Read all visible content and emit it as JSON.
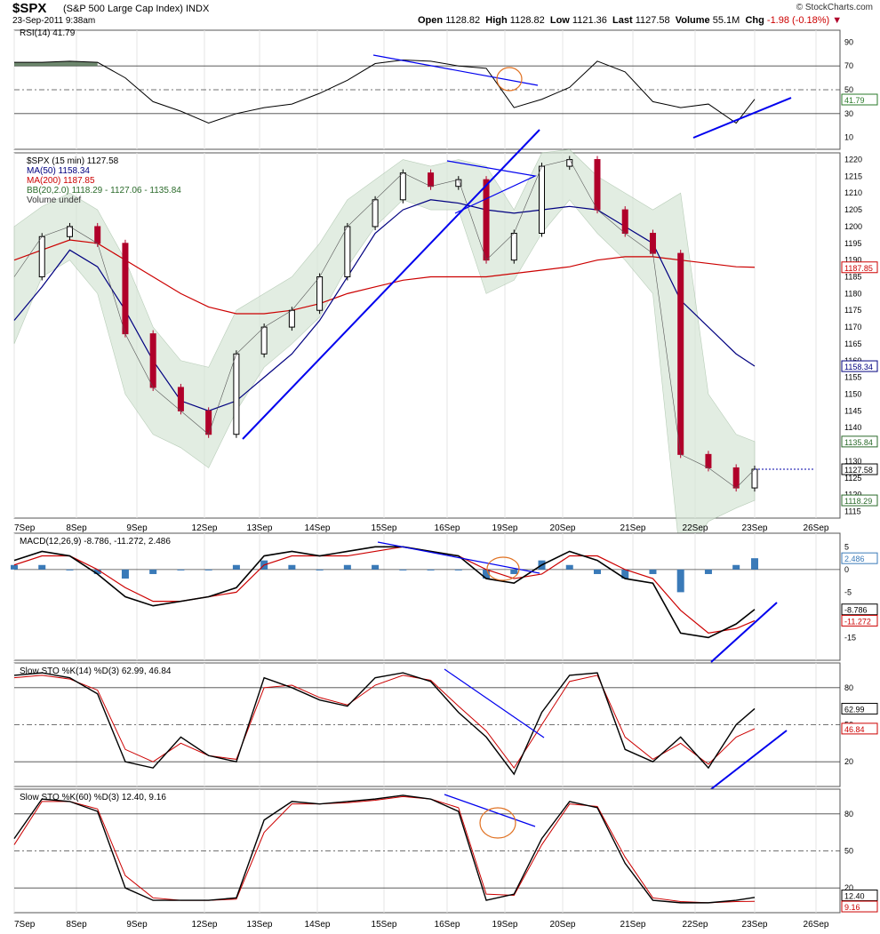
{
  "header": {
    "symbol": "$SPX",
    "description": "(S&P 500 Large Cap Index) INDX",
    "datetime": "23-Sep-2011 9:38am",
    "copyright": "© StockCharts.com",
    "open_label": "Open",
    "open": "1128.82",
    "high_label": "High",
    "high": "1128.82",
    "low_label": "Low",
    "low": "1121.36",
    "last_label": "Last",
    "last": "1127.58",
    "volume_label": "Volume",
    "volume": "55.1M",
    "chg_label": "Chg",
    "chg": "-1.98 (-0.18%)"
  },
  "colors": {
    "price_up": "#000000",
    "price_down": "#b0002a",
    "ma50": "#000080",
    "ma200": "#cc0000",
    "bb_fill": "#d7e6d7",
    "trendline": "#0000ee",
    "circle": "#e07020",
    "macd_hist": "#3a7ab8",
    "rsi_fill": "#4a6a4a"
  },
  "chart_data": [
    {
      "type": "line",
      "panel": "RSI",
      "legend": "RSI(14) 41.79",
      "y_ticks": [
        "90",
        "70",
        "50",
        "30",
        "10"
      ],
      "ylim": [
        0,
        100
      ],
      "last_value_label": "41.79",
      "x": [
        0,
        3,
        6,
        9,
        12,
        15,
        18,
        21,
        24,
        27,
        30,
        33,
        36,
        39,
        42,
        45,
        48,
        51,
        54,
        57,
        60,
        63,
        66,
        69,
        72,
        75,
        78,
        80
      ],
      "values": [
        73,
        73,
        74,
        73,
        60,
        40,
        32,
        22,
        30,
        35,
        38,
        47,
        58,
        72,
        75,
        74,
        70,
        68,
        35,
        42,
        52,
        74,
        65,
        40,
        35,
        38,
        22,
        42
      ]
    },
    {
      "type": "candlestick",
      "panel": "price",
      "legend": [
        "$SPX (15 min) 1127.58",
        "MA(50) 1158.34",
        "MA(200) 1187.85",
        "BB(20,2.0) 1118.29 - 1127.06 - 1135.84",
        "Volume undef"
      ],
      "y_ticks": [
        "1220",
        "1215",
        "1210",
        "1205",
        "1200",
        "1195",
        "1190",
        "1185",
        "1180",
        "1175",
        "1170",
        "1165",
        "1160",
        "1155",
        "1150",
        "1145",
        "1140",
        "1135",
        "1130",
        "1125",
        "1120",
        "1115"
      ],
      "ylim": [
        1113,
        1222
      ],
      "price_labels": [
        "1187.85",
        "1158.34",
        "1135.84",
        "1127.58",
        "1118.29"
      ],
      "x": [
        0,
        3,
        6,
        9,
        12,
        15,
        18,
        21,
        24,
        27,
        30,
        33,
        36,
        39,
        42,
        45,
        48,
        51,
        54,
        57,
        60,
        63,
        66,
        69,
        72,
        75,
        78,
        80
      ],
      "close": [
        1185,
        1197,
        1200,
        1195,
        1168,
        1152,
        1145,
        1138,
        1162,
        1170,
        1175,
        1185,
        1200,
        1208,
        1216,
        1212,
        1214,
        1190,
        1198,
        1218,
        1220,
        1205,
        1198,
        1192,
        1132,
        1128,
        1122,
        1127.58
      ],
      "ma50": [
        1172,
        1182,
        1193,
        1188,
        1175,
        1160,
        1148,
        1145,
        1148,
        1155,
        1162,
        1172,
        1185,
        1198,
        1205,
        1208,
        1207,
        1205,
        1204,
        1205,
        1206,
        1205,
        1200,
        1195,
        1178,
        1170,
        1162,
        1158.34
      ],
      "ma200": [
        1190,
        1193,
        1196,
        1195,
        1190,
        1185,
        1180,
        1176,
        1174,
        1174,
        1175,
        1177,
        1180,
        1182,
        1184,
        1185,
        1185,
        1185,
        1186,
        1187,
        1188,
        1190,
        1191,
        1191,
        1190,
        1189,
        1188,
        1187.85
      ],
      "bb_upper": [
        1200,
        1206,
        1210,
        1205,
        1190,
        1170,
        1160,
        1158,
        1175,
        1180,
        1185,
        1195,
        1208,
        1214,
        1220,
        1218,
        1220,
        1218,
        1205,
        1222,
        1223,
        1215,
        1210,
        1205,
        1210,
        1150,
        1138,
        1135.84
      ],
      "bb_lower": [
        1165,
        1185,
        1190,
        1180,
        1150,
        1138,
        1134,
        1128,
        1145,
        1158,
        1165,
        1173,
        1188,
        1200,
        1208,
        1205,
        1205,
        1180,
        1184,
        1198,
        1208,
        1198,
        1190,
        1180,
        1100,
        1112,
        1116,
        1118.29
      ]
    },
    {
      "type": "line",
      "panel": "MACD",
      "legend": "MACD(12,26,9) -8.786, -11.272, 2.486",
      "y_ticks": [
        "5",
        "0",
        "-5",
        "-10",
        "-15"
      ],
      "ylim": [
        -20,
        8
      ],
      "value_labels": [
        "2.486",
        "-8.786",
        "-11.272"
      ],
      "x": [
        0,
        3,
        6,
        9,
        12,
        15,
        18,
        21,
        24,
        27,
        30,
        33,
        36,
        39,
        42,
        45,
        48,
        51,
        54,
        57,
        60,
        63,
        66,
        69,
        72,
        75,
        78,
        80
      ],
      "macd": [
        2,
        4,
        3,
        -1,
        -6,
        -8,
        -7,
        -6,
        -4,
        3,
        4,
        3,
        4,
        5,
        5,
        4,
        3,
        -2,
        -3,
        1,
        4,
        2,
        -2,
        -3,
        -14,
        -15,
        -12,
        -8.786
      ],
      "signal": [
        1,
        3,
        3,
        0,
        -4,
        -7,
        -7,
        -6,
        -5,
        1,
        3,
        3,
        3,
        4,
        5,
        4,
        3,
        0,
        -2,
        -1,
        3,
        3,
        0,
        -2,
        -9,
        -14,
        -13,
        -11.272
      ],
      "histogram": [
        1,
        1,
        0,
        -1,
        -2,
        -1,
        0,
        0,
        1,
        2,
        1,
        0,
        1,
        1,
        0,
        0,
        0,
        -2,
        -1,
        2,
        1,
        -1,
        -2,
        -1,
        -5,
        -1,
        1,
        2.486
      ]
    },
    {
      "type": "line",
      "panel": "STO14",
      "legend": "Slow STO %K(14) %D(3) 62.99, 46.84",
      "y_ticks": [
        "80",
        "50",
        "20"
      ],
      "ylim": [
        0,
        100
      ],
      "value_labels": [
        "62.99",
        "46.84"
      ],
      "x": [
        0,
        3,
        6,
        9,
        12,
        15,
        18,
        21,
        24,
        27,
        30,
        33,
        36,
        39,
        42,
        45,
        48,
        51,
        54,
        57,
        60,
        63,
        66,
        69,
        72,
        75,
        78,
        80
      ],
      "k": [
        90,
        92,
        88,
        75,
        20,
        15,
        40,
        25,
        20,
        88,
        80,
        70,
        65,
        88,
        92,
        85,
        60,
        40,
        10,
        60,
        90,
        92,
        30,
        20,
        40,
        15,
        50,
        62.99
      ],
      "d": [
        88,
        90,
        87,
        78,
        30,
        20,
        35,
        25,
        22,
        80,
        82,
        72,
        66,
        82,
        90,
        86,
        65,
        45,
        15,
        50,
        85,
        90,
        40,
        22,
        35,
        18,
        40,
        46.84
      ]
    },
    {
      "type": "line",
      "panel": "STO60",
      "legend": "Slow STO %K(60) %D(3) 12.40, 9.16",
      "y_ticks": [
        "80",
        "50",
        "20"
      ],
      "ylim": [
        0,
        100
      ],
      "value_labels": [
        "12.40",
        "9.16"
      ],
      "x": [
        0,
        3,
        6,
        9,
        12,
        15,
        18,
        21,
        24,
        27,
        30,
        33,
        36,
        39,
        42,
        45,
        48,
        51,
        54,
        57,
        60,
        63,
        66,
        69,
        72,
        75,
        78,
        80
      ],
      "k": [
        60,
        92,
        90,
        82,
        20,
        10,
        10,
        10,
        12,
        75,
        90,
        88,
        90,
        92,
        95,
        92,
        82,
        10,
        15,
        60,
        90,
        85,
        40,
        10,
        8,
        8,
        10,
        12.4
      ],
      "d": [
        55,
        90,
        90,
        84,
        30,
        12,
        10,
        10,
        11,
        65,
        88,
        88,
        89,
        91,
        94,
        92,
        85,
        15,
        14,
        55,
        88,
        86,
        45,
        12,
        9,
        8,
        9,
        9.16
      ]
    }
  ],
  "date_ticks": [
    "7Sep",
    "8Sep",
    "9Sep",
    "12Sep",
    "13Sep",
    "14Sep",
    "15Sep",
    "16Sep",
    "19Sep",
    "20Sep",
    "21Sep",
    "22Sep",
    "23Sep",
    "26Sep"
  ],
  "date_ticks_bottom": [
    "7Sep",
    "8Sep",
    "9Sep",
    "12Sep",
    "13Sep",
    "14Sep",
    "15Sep",
    "16Sep",
    "19Sep",
    "20Sep",
    "21Sep",
    "22Sep",
    "23Sep",
    "26Sep"
  ]
}
